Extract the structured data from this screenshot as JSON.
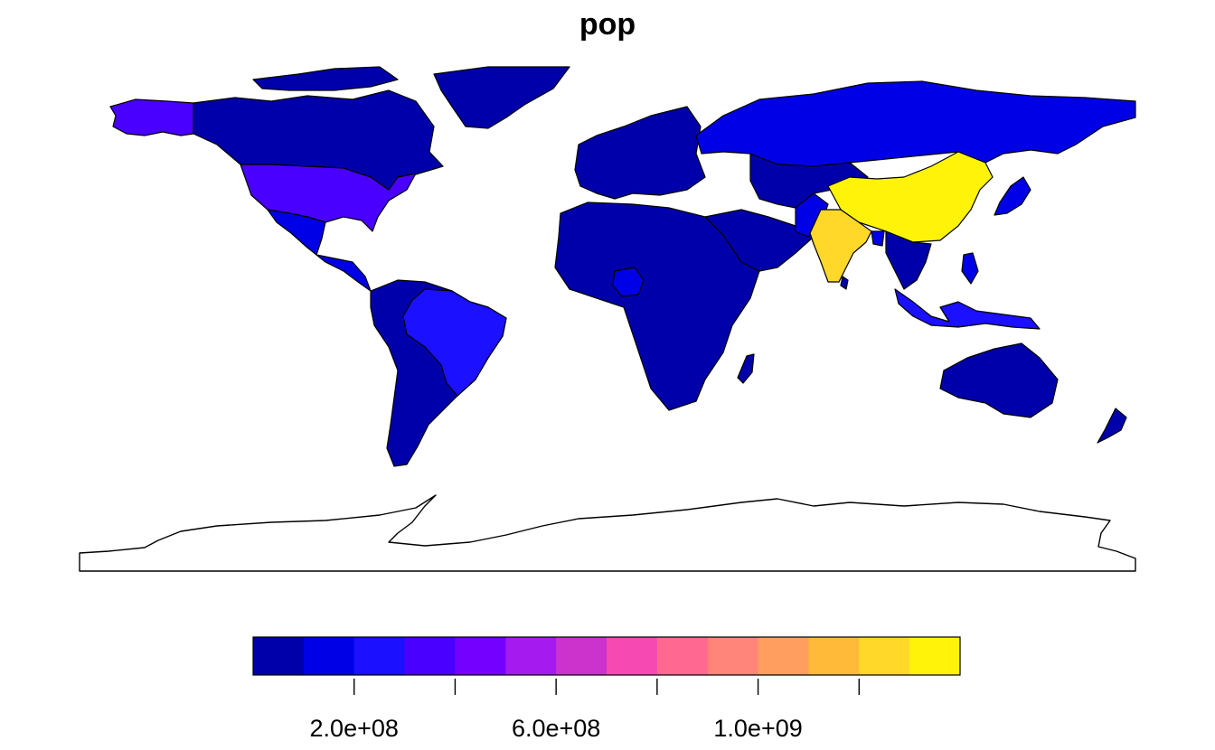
{
  "title": "pop",
  "legend": {
    "ticks": [
      {
        "value": 200000000,
        "label": "2.0e+08"
      },
      {
        "value": 400000000,
        "label": ""
      },
      {
        "value": 600000000,
        "label": "6.0e+08"
      },
      {
        "value": 800000000,
        "label": ""
      },
      {
        "value": 1000000000,
        "label": "1.0e+09"
      },
      {
        "value": 1200000000,
        "label": ""
      }
    ],
    "min": 0,
    "max": 1400000000,
    "colors": [
      "#0000AA",
      "#0000E6",
      "#1B10FF",
      "#4900FF",
      "#7400FF",
      "#A51AEE",
      "#CC33CC",
      "#F649B2",
      "#FF6991",
      "#FF8479",
      "#FF9E5E",
      "#FFBA3A",
      "#FFD82A",
      "#FFF30A"
    ]
  },
  "chart_data": {
    "type": "choropleth",
    "variable": "pop",
    "regions": [
      {
        "region": "China",
        "value": 1364270000,
        "color": "#FFF30A"
      },
      {
        "region": "India",
        "value": 1295291543,
        "color": "#FFD82A"
      },
      {
        "region": "United States",
        "value": 318622525,
        "color": "#4900FF"
      },
      {
        "region": "Indonesia",
        "value": 255131116,
        "color": "#1B10FF"
      },
      {
        "region": "Brazil",
        "value": 204213133,
        "color": "#1B10FF"
      },
      {
        "region": "Pakistan",
        "value": 185546257,
        "color": "#0000E6"
      },
      {
        "region": "Nigeria",
        "value": 173615345,
        "color": "#0000E6"
      },
      {
        "region": "Bangladesh",
        "value": 159405279,
        "color": "#0000E6"
      },
      {
        "region": "Russia",
        "value": 143819666,
        "color": "#0000E6"
      },
      {
        "region": "Japan",
        "value": 127276000,
        "color": "#0000E6"
      },
      {
        "region": "Mexico",
        "value": 124221600,
        "color": "#0000E6"
      },
      {
        "region": "Philippines",
        "value": 100102249,
        "color": "#0000E6"
      },
      {
        "region": "Canada",
        "value": 35535348,
        "color": "#0000AA"
      },
      {
        "region": "Australia",
        "value": 23504138,
        "color": "#0000AA"
      },
      {
        "region": "Antarctica",
        "value": null,
        "color": "#FFFFFF"
      }
    ]
  }
}
